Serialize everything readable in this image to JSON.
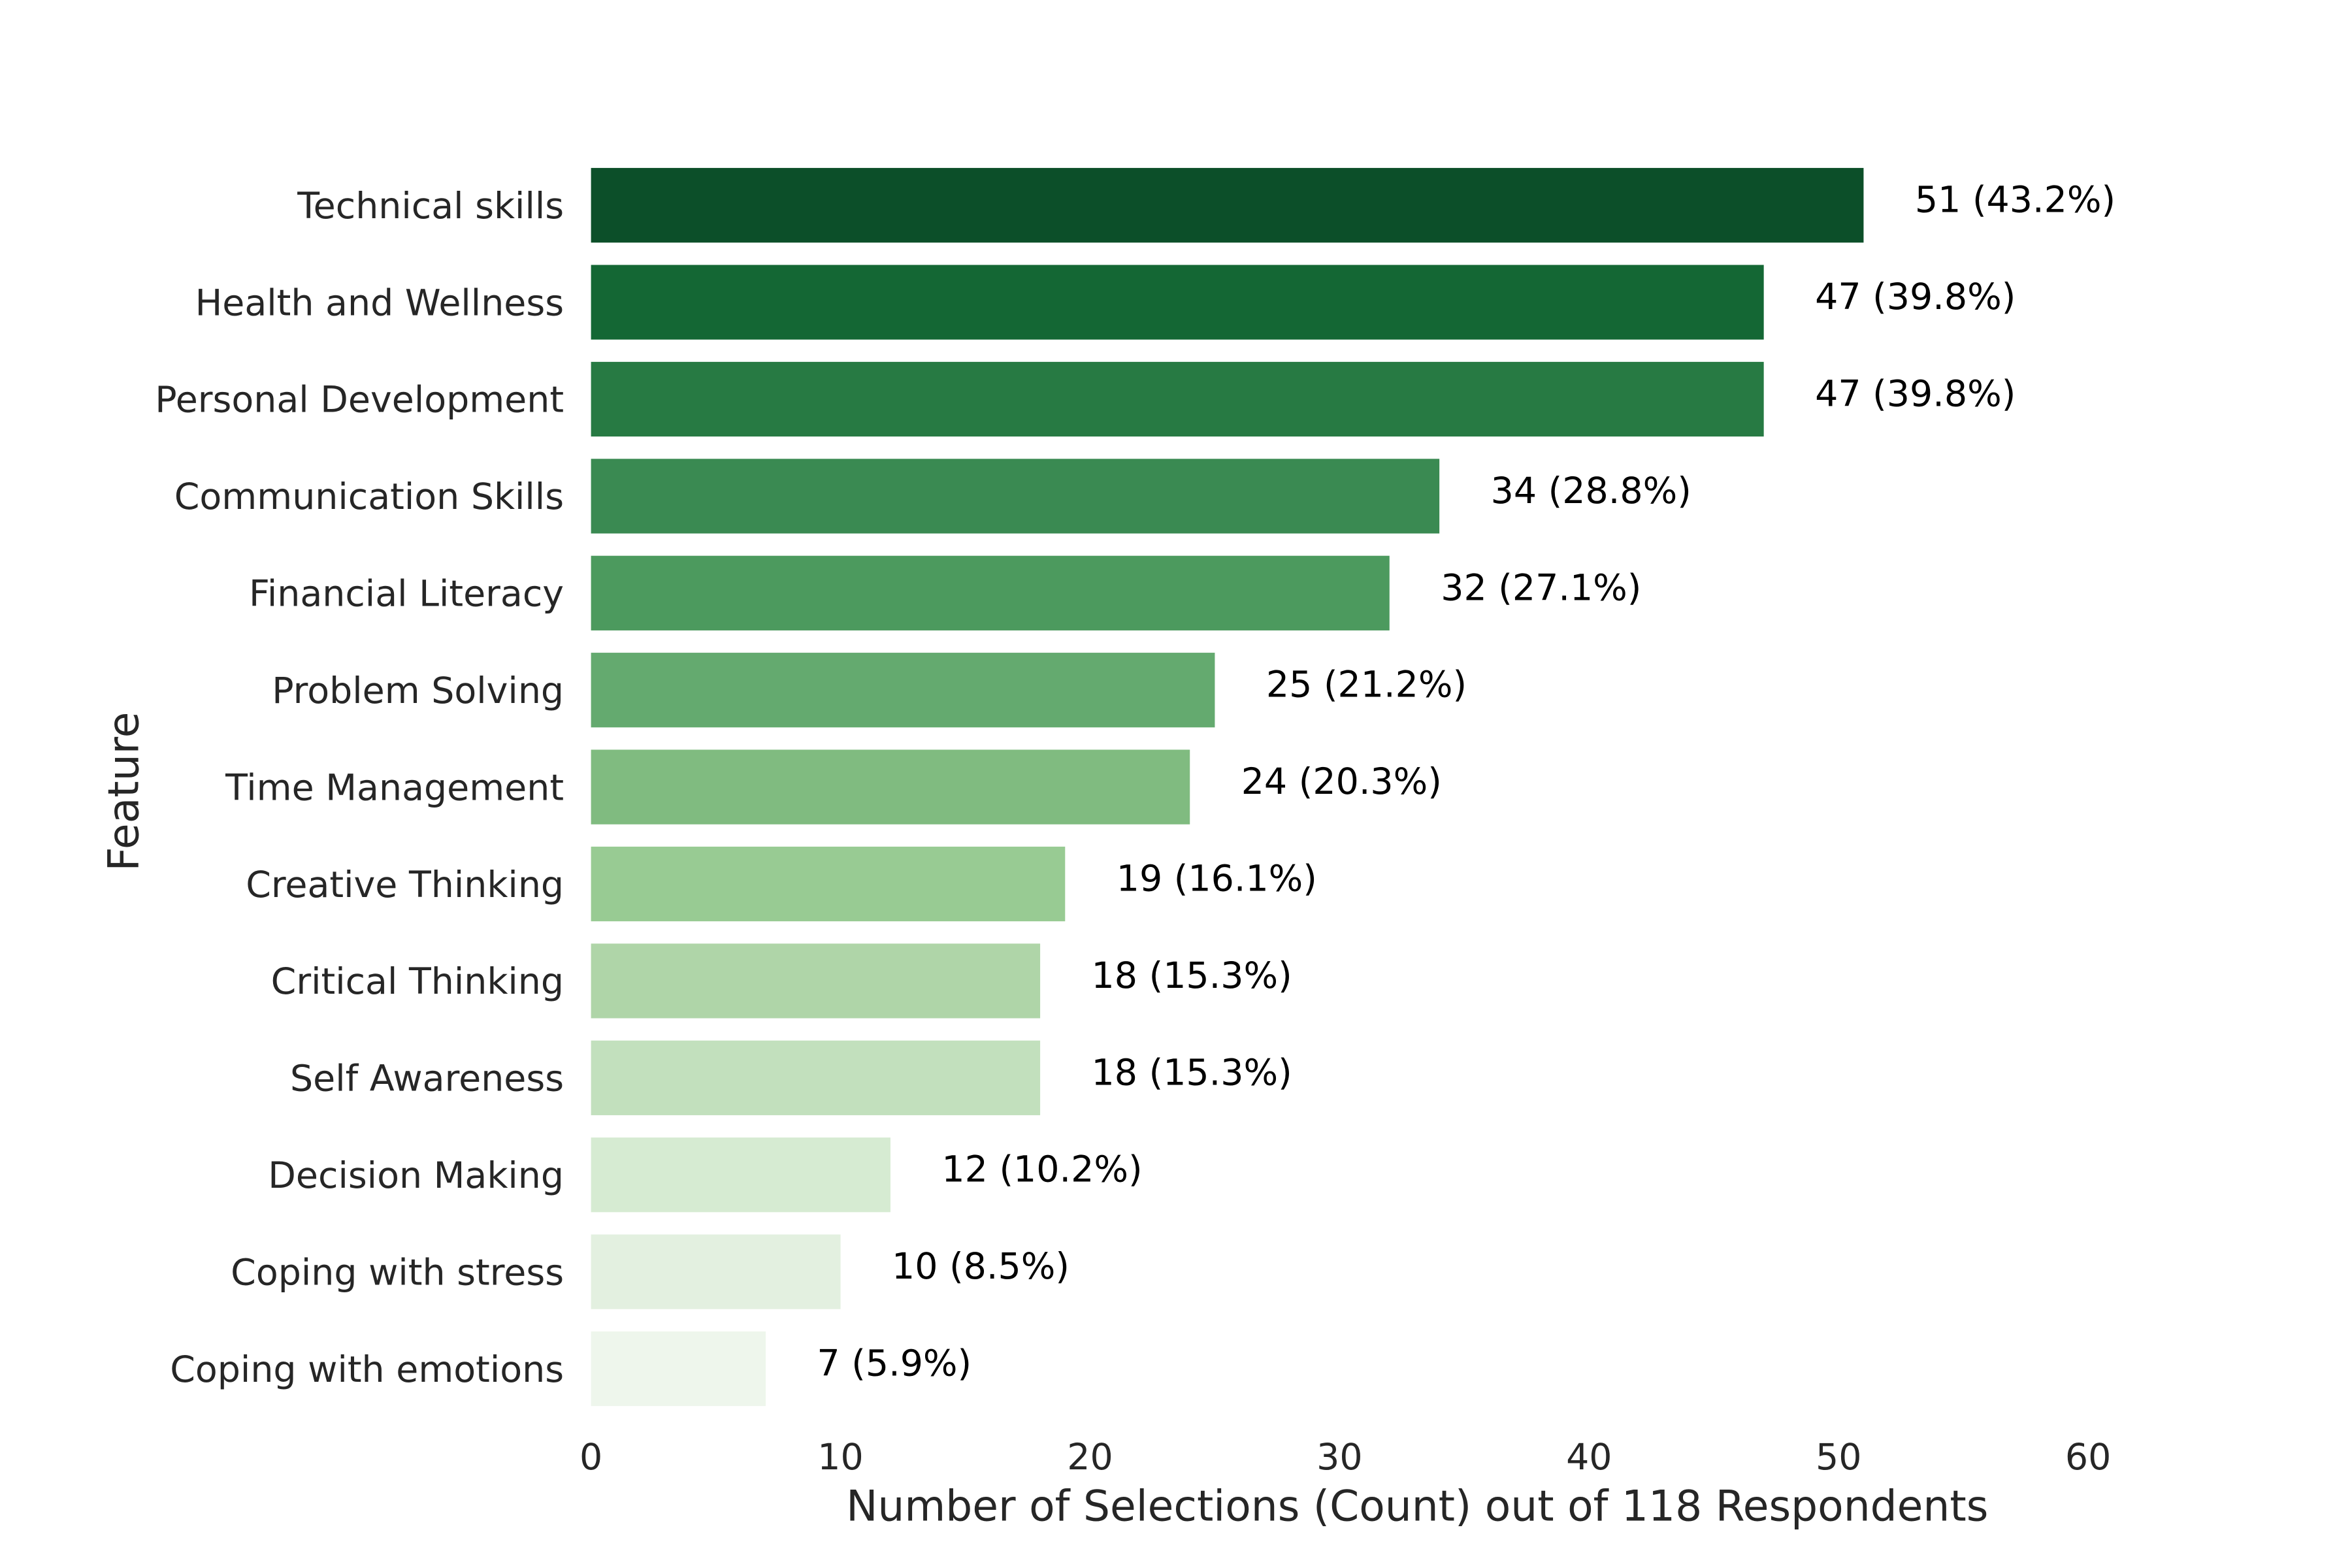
{
  "chart_data": {
    "type": "bar",
    "orientation": "horizontal",
    "x_label": "Number of Selections (Count) out of 118 Respondents",
    "y_label": "Feature",
    "categories": [
      "Technical skills",
      "Health and Wellness",
      "Personal Development",
      "Communication Skills",
      "Financial Literacy",
      "Problem Solving",
      "Time Management",
      "Creative Thinking",
      "Critical Thinking",
      "Self Awareness",
      "Decision Making",
      "Coping with stress",
      "Coping with emotions"
    ],
    "values": [
      51,
      47,
      47,
      34,
      32,
      25,
      24,
      19,
      18,
      18,
      12,
      10,
      7
    ],
    "value_labels": [
      "51 (43.2%)",
      "47 (39.8%)",
      "47 (39.8%)",
      "34 (28.8%)",
      "32 (27.1%)",
      "25 (21.2%)",
      "24 (20.3%)",
      "19 (16.1%)",
      "18 (15.3%)",
      "18 (15.3%)",
      "12 (10.2%)",
      "10 (8.5%)",
      "7 (5.9%)"
    ],
    "colors": [
      "#0c4f29",
      "#146734",
      "#277a43",
      "#3a8a52",
      "#4c9a5e",
      "#64aa6f",
      "#80bb80",
      "#98cb93",
      "#afd5a8",
      "#c2e0bd",
      "#d6ebd2",
      "#e3f0e0",
      "#eef6ec"
    ],
    "xlim": [
      0,
      60
    ],
    "xticks": [
      0,
      10,
      20,
      30,
      40,
      50,
      60
    ],
    "grid": false
  }
}
